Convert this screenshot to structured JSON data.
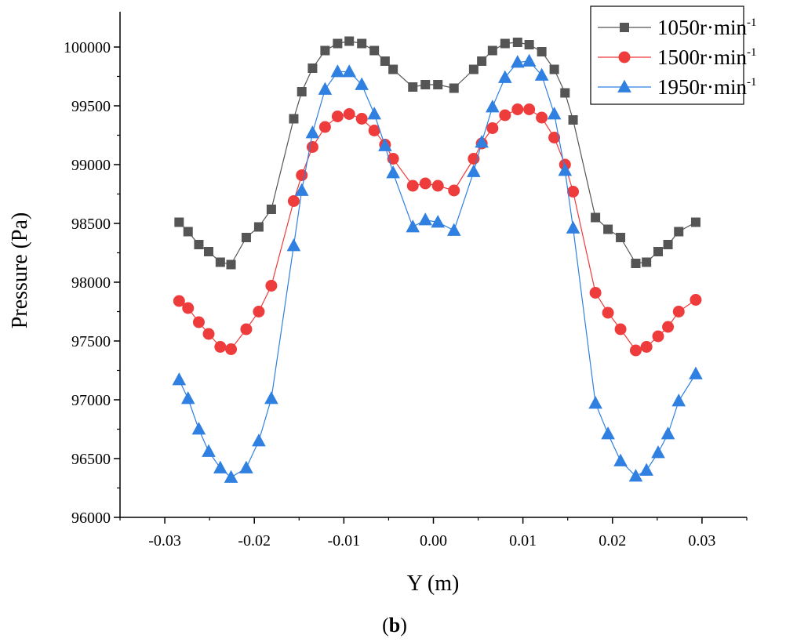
{
  "chart_data": {
    "type": "line",
    "xlabel": "Y (m)",
    "ylabel": "Pressure (Pa)",
    "xlim": [
      -0.035,
      0.035
    ],
    "ylim": [
      96000,
      100300
    ],
    "xticks": [
      -0.03,
      -0.02,
      -0.01,
      0.0,
      0.01,
      0.02,
      0.03
    ],
    "xtick_labels": [
      "-0.03",
      "-0.02",
      "-0.01",
      "0.00",
      "0.01",
      "0.02",
      "0.03"
    ],
    "yticks": [
      96000,
      96500,
      97000,
      97500,
      98000,
      98500,
      99000,
      99500,
      100000
    ],
    "ytick_labels": [
      "96000",
      "96500",
      "97000",
      "97500",
      "98000",
      "98500",
      "99000",
      "99500",
      "100000"
    ],
    "grid": false,
    "legend_position": "top-right",
    "caption": {
      "open": "(",
      "label": "b",
      "close": ")"
    },
    "series": [
      {
        "name": "1050r·min",
        "name_sup": "-1",
        "color": "#555555",
        "marker": "square",
        "points": [
          [
            -0.0284,
            98510
          ],
          [
            -0.0274,
            98430
          ],
          [
            -0.0262,
            98320
          ],
          [
            -0.0251,
            98260
          ],
          [
            -0.0238,
            98170
          ],
          [
            -0.0226,
            98150
          ],
          [
            -0.0209,
            98380
          ],
          [
            -0.0195,
            98470
          ],
          [
            -0.0181,
            98620
          ],
          [
            -0.0156,
            99390
          ],
          [
            -0.0147,
            99620
          ],
          [
            -0.0135,
            99820
          ],
          [
            -0.0121,
            99970
          ],
          [
            -0.0107,
            100030
          ],
          [
            -0.0094,
            100050
          ],
          [
            -0.008,
            100030
          ],
          [
            -0.0066,
            99970
          ],
          [
            -0.0054,
            99880
          ],
          [
            -0.0045,
            99810
          ],
          [
            -0.0023,
            99660
          ],
          [
            -0.0009,
            99680
          ],
          [
            0.0005,
            99680
          ],
          [
            0.0023,
            99650
          ],
          [
            0.0045,
            99810
          ],
          [
            0.0054,
            99880
          ],
          [
            0.0066,
            99970
          ],
          [
            0.008,
            100030
          ],
          [
            0.0094,
            100040
          ],
          [
            0.0107,
            100020
          ],
          [
            0.0121,
            99960
          ],
          [
            0.0135,
            99810
          ],
          [
            0.0147,
            99610
          ],
          [
            0.0156,
            99380
          ],
          [
            0.0181,
            98550
          ],
          [
            0.0195,
            98450
          ],
          [
            0.0209,
            98380
          ],
          [
            0.0226,
            98160
          ],
          [
            0.0238,
            98170
          ],
          [
            0.0251,
            98260
          ],
          [
            0.0262,
            98320
          ],
          [
            0.0274,
            98430
          ],
          [
            0.0293,
            98510
          ]
        ]
      },
      {
        "name": "1500r·min",
        "name_sup": "-1",
        "color": "#ee3b3b",
        "marker": "circle",
        "points": [
          [
            -0.0284,
            97840
          ],
          [
            -0.0274,
            97780
          ],
          [
            -0.0262,
            97660
          ],
          [
            -0.0251,
            97560
          ],
          [
            -0.0238,
            97450
          ],
          [
            -0.0226,
            97430
          ],
          [
            -0.0209,
            97600
          ],
          [
            -0.0195,
            97750
          ],
          [
            -0.0181,
            97970
          ],
          [
            -0.0156,
            98690
          ],
          [
            -0.0147,
            98910
          ],
          [
            -0.0135,
            99150
          ],
          [
            -0.0121,
            99320
          ],
          [
            -0.0107,
            99410
          ],
          [
            -0.0094,
            99430
          ],
          [
            -0.008,
            99390
          ],
          [
            -0.0066,
            99290
          ],
          [
            -0.0054,
            99170
          ],
          [
            -0.0045,
            99050
          ],
          [
            -0.0023,
            98820
          ],
          [
            -0.0009,
            98840
          ],
          [
            0.0005,
            98820
          ],
          [
            0.0023,
            98780
          ],
          [
            0.0045,
            99050
          ],
          [
            0.0054,
            99180
          ],
          [
            0.0066,
            99310
          ],
          [
            0.008,
            99420
          ],
          [
            0.0094,
            99470
          ],
          [
            0.0107,
            99470
          ],
          [
            0.0121,
            99400
          ],
          [
            0.0135,
            99230
          ],
          [
            0.0147,
            99000
          ],
          [
            0.0156,
            98770
          ],
          [
            0.0181,
            97910
          ],
          [
            0.0195,
            97740
          ],
          [
            0.0209,
            97600
          ],
          [
            0.0226,
            97420
          ],
          [
            0.0238,
            97450
          ],
          [
            0.0251,
            97540
          ],
          [
            0.0262,
            97620
          ],
          [
            0.0274,
            97750
          ],
          [
            0.0293,
            97850
          ]
        ]
      },
      {
        "name": "1950r·min",
        "name_sup": "-1",
        "color": "#2f80e0",
        "marker": "triangle",
        "points": [
          [
            -0.0284,
            97170
          ],
          [
            -0.0274,
            97010
          ],
          [
            -0.0262,
            96750
          ],
          [
            -0.0251,
            96560
          ],
          [
            -0.0238,
            96420
          ],
          [
            -0.0226,
            96340
          ],
          [
            -0.0209,
            96420
          ],
          [
            -0.0195,
            96650
          ],
          [
            -0.0181,
            97010
          ],
          [
            -0.0156,
            98310
          ],
          [
            -0.0147,
            98780
          ],
          [
            -0.0135,
            99270
          ],
          [
            -0.0121,
            99640
          ],
          [
            -0.0107,
            99790
          ],
          [
            -0.0094,
            99790
          ],
          [
            -0.008,
            99680
          ],
          [
            -0.0066,
            99430
          ],
          [
            -0.0054,
            99160
          ],
          [
            -0.0045,
            98930
          ],
          [
            -0.0023,
            98470
          ],
          [
            -0.0009,
            98530
          ],
          [
            0.0005,
            98510
          ],
          [
            0.0023,
            98440
          ],
          [
            0.0045,
            98940
          ],
          [
            0.0054,
            99190
          ],
          [
            0.0066,
            99490
          ],
          [
            0.008,
            99740
          ],
          [
            0.0094,
            99870
          ],
          [
            0.0107,
            99880
          ],
          [
            0.0121,
            99760
          ],
          [
            0.0135,
            99430
          ],
          [
            0.0147,
            98950
          ],
          [
            0.0156,
            98460
          ],
          [
            0.0181,
            96970
          ],
          [
            0.0195,
            96710
          ],
          [
            0.0209,
            96480
          ],
          [
            0.0226,
            96350
          ],
          [
            0.0238,
            96400
          ],
          [
            0.0251,
            96550
          ],
          [
            0.0262,
            96710
          ],
          [
            0.0274,
            96990
          ],
          [
            0.0293,
            97220
          ]
        ]
      }
    ]
  }
}
